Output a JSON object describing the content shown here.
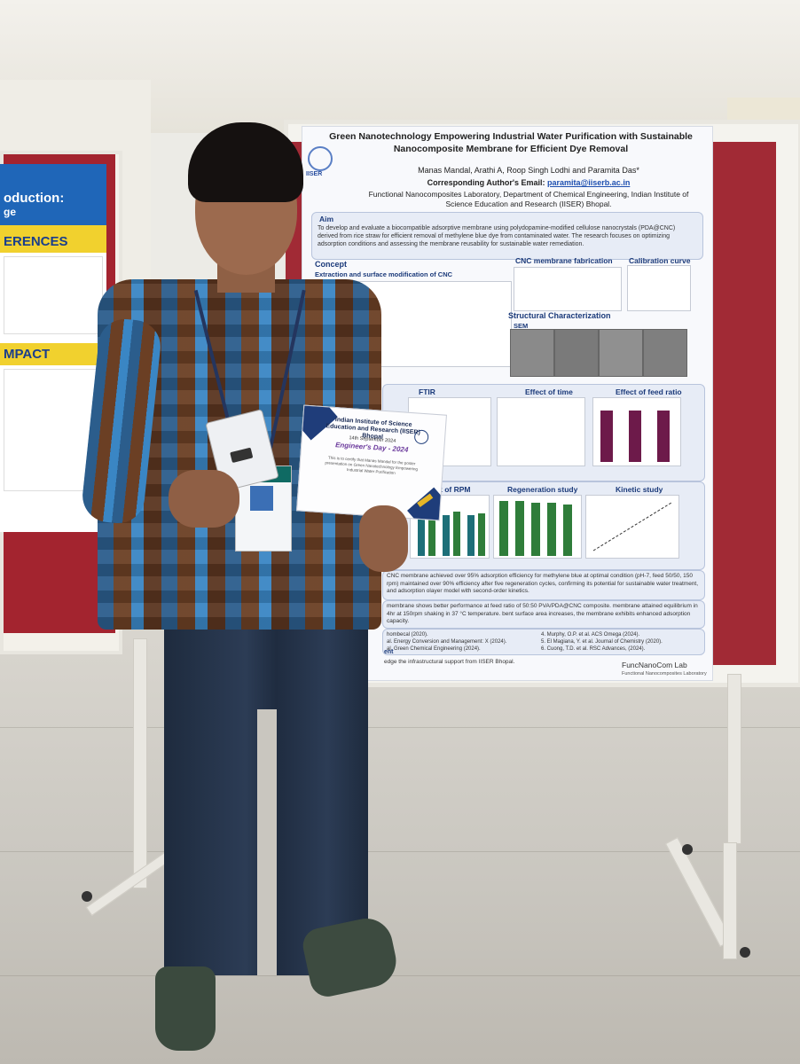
{
  "scene": {
    "description_type": "photo",
    "colors": {
      "felt": "#a12a35",
      "poster_accent": "#1b3a7a",
      "link": "#1e4fb0",
      "bar_green": "#2f7d3a",
      "bar_purple": "#6d1a4a"
    }
  },
  "left_poster": {
    "header": "oduction:",
    "header_sub": "ge",
    "references_heading": "ERENCES",
    "impact_heading": "MPACT"
  },
  "poster": {
    "title": "Green Nanotechnology Empowering Industrial Water Purification with Sustainable Nanocomposite Membrane for Efficient Dye Removal",
    "authors": "Manas Mandal, Arathi A, Roop Singh Lodhi and Paramita Das*",
    "email_label": "Corresponding Author's Email:",
    "email": "paramita@iiserb.ac.in",
    "affiliation": "Functional Nanocomposites Laboratory, Department of Chemical Engineering, Indian Institute of Science Education and Research (IISER) Bhopal.",
    "institute_logo": "IISER",
    "aim_label": "Aim",
    "aim_text": "To develop and evaluate a biocompatible adsorptive membrane using polydopamine-modified cellulose nanocrystals (PDA@CNC) derived from rice straw for efficient removal of methylene blue dye from contaminated water. The research focuses on optimizing adsorption conditions and assessing the membrane reusability for sustainable water remediation.",
    "concept_label": "Concept",
    "concept_sub": "Extraction and surface modification of CNC",
    "cnc_fab_label": "CNC membrane fabrication",
    "calibration_label": "Calibration curve",
    "structural_label": "Structural Characterization",
    "sem_label": "SEM",
    "ftir_label": "FTIR",
    "time_label": "Effect of time",
    "feed_label": "Effect of feed ratio",
    "rpm_label": "t of RPM",
    "regen_label": "Regeneration study",
    "kinetic_label": "Kinetic study",
    "result_text": "CNC membrane achieved over 95% adsorption efficiency for methylene blue at optimal condition (pH-7, feed 50/50, 150 rpm) maintained over 90% efficiency after five regeneration cycles, confirming its potential for sustainable water treatment, and adsorption olayer model with second-order kinetics.",
    "conclusion_text": "membrane shows better performance at feed ratio of 50:50 PVA/PDA@CNC composite. membrane attained equilibrium in 4hr at 150rpm shaking in 37 °C temperature. bent surface area increases, the membrane exhibits enhanced adsorption capacity.",
    "references": [
      "hombecal (2020).",
      "al. Energy Conversion and Management: X (2024).",
      "al. Green Chemical Engineering (2024).",
      "4. Murphy, O.P. et al. ACS Omega (2024).",
      "5. El Magiana, Y. et al. Journal of Chemistry (2020).",
      "6. Cuong, T.D. et al. RSC Advances, (2024)."
    ],
    "ack_label": "ent",
    "ack_text": "edge the infrastructural support from IISER Bhopal.",
    "lab_logo": "FuncNanoCom Lab",
    "lab_name": "Functional Nanocomposites Laboratory"
  },
  "certificate": {
    "title": "Indian Institute of Science Education and Research (IISER) Bhopal",
    "date": "14th September 2024",
    "event": "Engineer's Day - 2024",
    "body": "This is to certify that Manas Mandal for the poster presentation on Green Nanotechnology Empowering Industrial Water Purification"
  }
}
